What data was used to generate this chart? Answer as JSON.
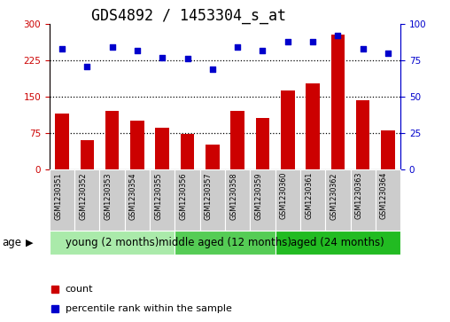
{
  "title": "GDS4892 / 1453304_s_at",
  "samples": [
    "GSM1230351",
    "GSM1230352",
    "GSM1230353",
    "GSM1230354",
    "GSM1230355",
    "GSM1230356",
    "GSM1230357",
    "GSM1230358",
    "GSM1230359",
    "GSM1230360",
    "GSM1230361",
    "GSM1230362",
    "GSM1230363",
    "GSM1230364"
  ],
  "counts": [
    115,
    60,
    120,
    100,
    85,
    72,
    50,
    120,
    105,
    163,
    178,
    278,
    143,
    80
  ],
  "percentile_ranks": [
    83,
    71,
    84,
    82,
    77,
    76,
    69,
    84,
    82,
    88,
    88,
    92,
    83,
    80
  ],
  "left_ylim": [
    0,
    300
  ],
  "right_ylim": [
    0,
    100
  ],
  "left_yticks": [
    0,
    75,
    150,
    225,
    300
  ],
  "right_yticks": [
    0,
    25,
    50,
    75,
    100
  ],
  "bar_color": "#cc0000",
  "dot_color": "#0000cc",
  "grid_color": "#000000",
  "background_color": "#ffffff",
  "groups": [
    {
      "label": "young (2 months)",
      "start": 0,
      "end": 5,
      "color": "#aaeaaa"
    },
    {
      "label": "middle aged (12 months)",
      "start": 5,
      "end": 9,
      "color": "#55cc55"
    },
    {
      "label": "aged (24 months)",
      "start": 9,
      "end": 14,
      "color": "#22bb22"
    }
  ],
  "age_label": "age",
  "legend_count_label": "count",
  "legend_pct_label": "percentile rank within the sample",
  "title_fontsize": 12,
  "tick_fontsize": 7.5,
  "sample_fontsize": 5.8,
  "group_fontsize": 8.5,
  "legend_fontsize": 8
}
